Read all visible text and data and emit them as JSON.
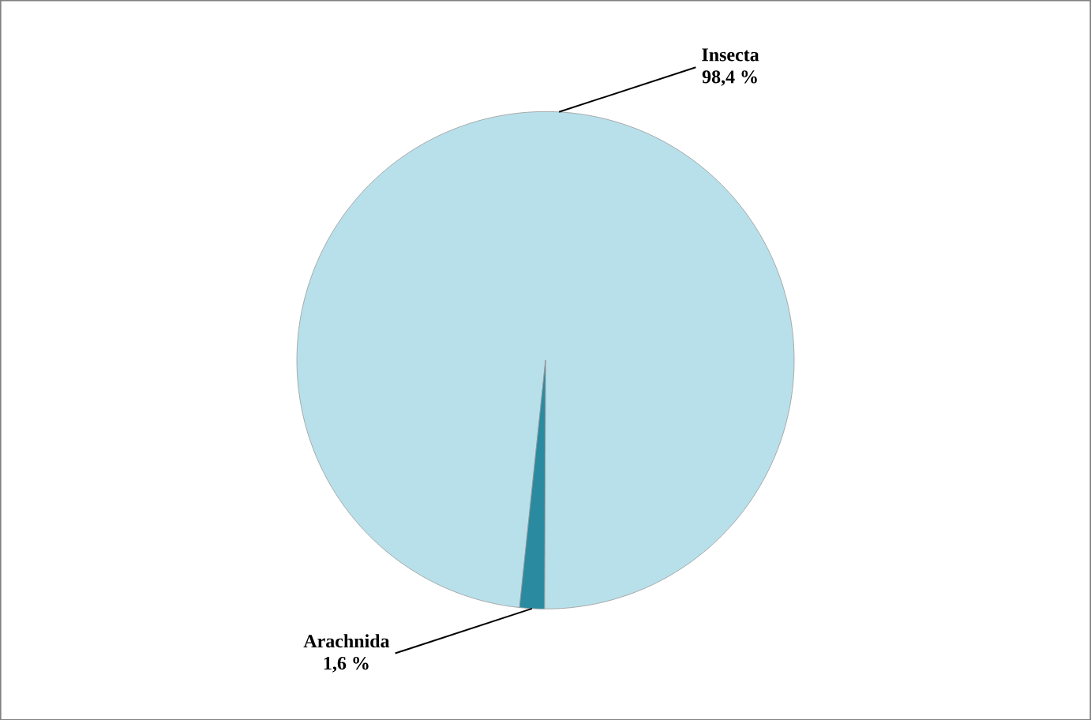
{
  "chart_data": {
    "type": "pie",
    "categories": [
      "Insecta",
      "Arachnida"
    ],
    "values": [
      98.4,
      1.6
    ],
    "colors": [
      "#b8e0ea",
      "#2a8aa0"
    ],
    "value_labels": [
      "98,4 %",
      "1,6 %"
    ]
  }
}
